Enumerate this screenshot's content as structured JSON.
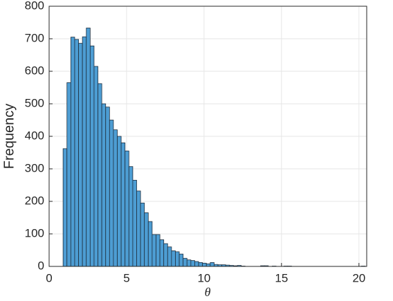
{
  "chart_data": {
    "type": "histogram",
    "xlabel": "θ",
    "ylabel": "Frequency",
    "bins": [
      0.9,
      1.15,
      1.4,
      1.65,
      1.9,
      2.15,
      2.4,
      2.65,
      2.9,
      3.15,
      3.4,
      3.65,
      3.9,
      4.15,
      4.4,
      4.65,
      4.9,
      5.15,
      5.4,
      5.65,
      5.9,
      6.15,
      6.4,
      6.65,
      6.9,
      7.15,
      7.4,
      7.65,
      7.9,
      8.15,
      8.4,
      8.65,
      8.9,
      9.15,
      9.4,
      9.65,
      9.9,
      10.15,
      10.4,
      10.65,
      10.9,
      11.15,
      11.4,
      11.65,
      11.9,
      12.15,
      12.4,
      12.65,
      12.9,
      13.15,
      13.4,
      13.65,
      13.9,
      14.15,
      14.4,
      14.65,
      14.9,
      15.15,
      15.4,
      15.65,
      15.9,
      16.15,
      16.4,
      16.65,
      16.9,
      17.15,
      17.4,
      17.65,
      17.9,
      18.15,
      18.4,
      18.65,
      18.9,
      19.15,
      19.4,
      19.65,
      19.9,
      20.15,
      20.4
    ],
    "values": [
      362,
      565,
      705,
      698,
      686,
      706,
      733,
      678,
      615,
      562,
      500,
      490,
      450,
      420,
      400,
      380,
      355,
      307,
      265,
      232,
      195,
      165,
      138,
      98,
      98,
      82,
      70,
      60,
      48,
      45,
      38,
      25,
      20,
      18,
      15,
      12,
      10,
      8,
      12,
      6,
      5,
      5,
      4,
      3,
      2,
      3,
      1,
      0,
      0,
      0,
      0,
      2,
      2,
      0,
      1,
      0,
      0,
      1,
      1,
      0,
      0,
      0,
      0,
      0,
      0,
      0,
      0,
      0,
      0,
      0,
      0,
      0,
      0,
      0,
      0,
      0,
      0,
      1
    ],
    "color": "#4d9dd3",
    "edgecolor": "#1f2f3f",
    "xlim": [
      0,
      20.5
    ],
    "ylim": [
      0,
      800
    ],
    "xticks": [
      0,
      5,
      10,
      15,
      20
    ],
    "yticks": [
      0,
      100,
      200,
      300,
      400,
      500,
      600,
      700,
      800
    ],
    "grid": true
  }
}
